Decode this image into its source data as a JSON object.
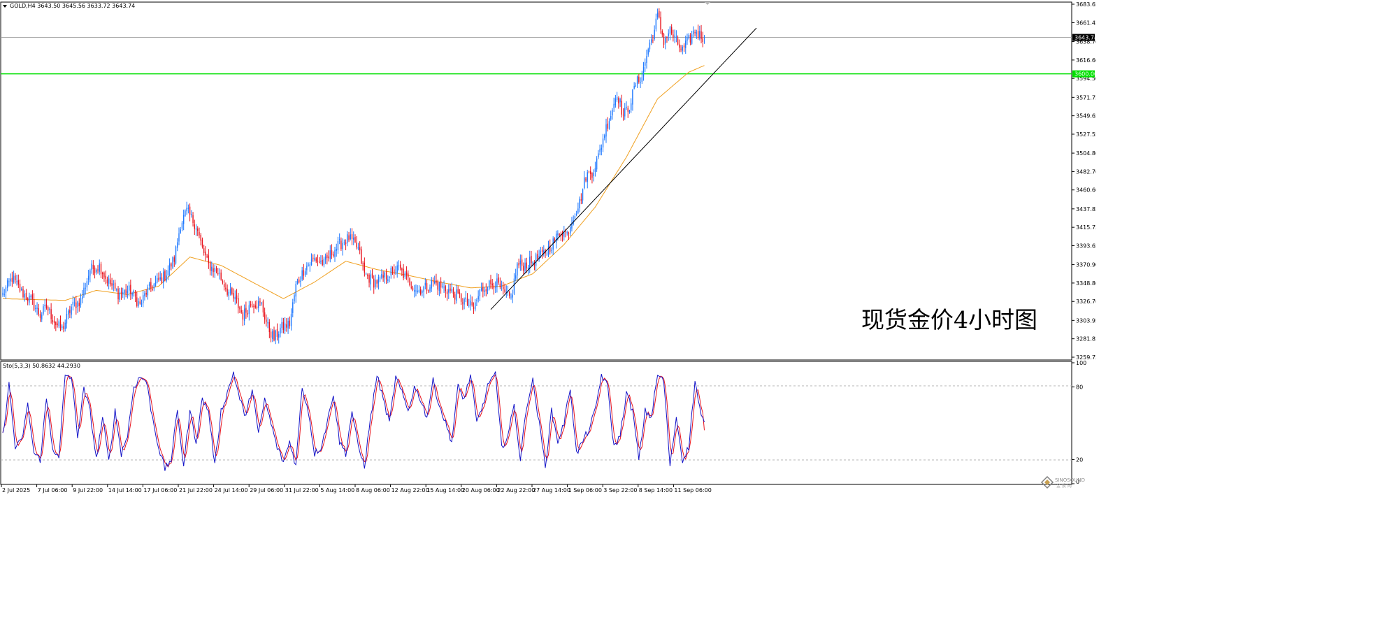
{
  "header": {
    "symbol_line": "GOLD,H4  3643.50 3645.56 3633.72 3643.74",
    "annotation": "现货金价4小时图"
  },
  "colors": {
    "up": "#1E78FF",
    "down": "#E8141E",
    "ma": "#F0A020",
    "support": "#00E000",
    "trend": "#000000",
    "stoch_k": "#1414C8",
    "stoch_d": "#E8141E",
    "bid_line": "#A0A0A0",
    "grid_dash": "#B4B4B4"
  },
  "stoch": {
    "label": "Sto(5,3,3) 50.8632 44.2930",
    "k_last": 50.8632,
    "d_last": 44.293,
    "levels": [
      20,
      80
    ],
    "axis_labels": [
      "100",
      "80",
      "20",
      "0"
    ]
  },
  "chart_data": {
    "type": "candlestick",
    "symbol": "GOLD",
    "timeframe": "H4",
    "last": {
      "open": 3643.5,
      "high": 3645.56,
      "low": 3633.72,
      "close": 3643.74
    },
    "ylim": [
      3259.75,
      3683.65
    ],
    "y_ticks": [
      "3683.65",
      "3661.45",
      "3638.70",
      "3616.60",
      "3594.50",
      "3571.75",
      "3549.65",
      "3527.55",
      "3504.80",
      "3482.70",
      "3460.60",
      "3437.85",
      "3415.75",
      "3393.65",
      "3370.90",
      "3348.80",
      "3326.70",
      "3303.95",
      "3281.85",
      "3259.75"
    ],
    "current_price_label": "3643.74",
    "support_level": 3600.0,
    "support_label": "3600.00",
    "x_tick_labels": [
      "2 Jul 2025",
      "7 Jul 06:00",
      "9 Jul 22:00",
      "14 Jul 14:00",
      "17 Jul 06:00",
      "21 Jul 22:00",
      "24 Jul 14:00",
      "29 Jul 06:00",
      "31 Jul 22:00",
      "5 Aug 14:00",
      "8 Aug 06:00",
      "12 Aug 22:00",
      "15 Aug 14:00",
      "20 Aug 06:00",
      "22 Aug 22:00",
      "27 Aug 14:00",
      "1 Sep 06:00",
      "3 Sep 22:00",
      "8 Sep 14:00",
      "11 Sep 06:00"
    ],
    "trend_line_points": [
      [
        3317,
        0.0
      ],
      [
        3655,
        1.0
      ]
    ],
    "price_anchors": [
      [
        0,
        3335
      ],
      [
        6,
        3355
      ],
      [
        12,
        3338
      ],
      [
        18,
        3328
      ],
      [
        24,
        3310
      ],
      [
        28,
        3320
      ],
      [
        34,
        3300
      ],
      [
        38,
        3293
      ],
      [
        44,
        3320
      ],
      [
        50,
        3328
      ],
      [
        56,
        3365
      ],
      [
        62,
        3370
      ],
      [
        66,
        3355
      ],
      [
        70,
        3345
      ],
      [
        74,
        3336
      ],
      [
        82,
        3340
      ],
      [
        88,
        3322
      ],
      [
        92,
        3338
      ],
      [
        98,
        3348
      ],
      [
        104,
        3358
      ],
      [
        110,
        3378
      ],
      [
        114,
        3420
      ],
      [
        118,
        3435
      ],
      [
        124,
        3418
      ],
      [
        128,
        3390
      ],
      [
        132,
        3370
      ],
      [
        138,
        3362
      ],
      [
        144,
        3340
      ],
      [
        150,
        3325
      ],
      [
        154,
        3310
      ],
      [
        160,
        3326
      ],
      [
        166,
        3322
      ],
      [
        170,
        3296
      ],
      [
        174,
        3282
      ],
      [
        178,
        3294
      ],
      [
        184,
        3300
      ],
      [
        188,
        3345
      ],
      [
        194,
        3368
      ],
      [
        200,
        3378
      ],
      [
        206,
        3372
      ],
      [
        212,
        3388
      ],
      [
        218,
        3398
      ],
      [
        222,
        3403
      ],
      [
        228,
        3390
      ],
      [
        232,
        3360
      ],
      [
        238,
        3350
      ],
      [
        242,
        3352
      ],
      [
        248,
        3360
      ],
      [
        254,
        3366
      ],
      [
        260,
        3352
      ],
      [
        266,
        3340
      ],
      [
        272,
        3344
      ],
      [
        276,
        3350
      ],
      [
        280,
        3345
      ],
      [
        286,
        3340
      ],
      [
        292,
        3333
      ],
      [
        298,
        3324
      ],
      [
        302,
        3318
      ],
      [
        306,
        3338
      ],
      [
        310,
        3345
      ],
      [
        316,
        3350
      ],
      [
        322,
        3335
      ],
      [
        326,
        3330
      ],
      [
        330,
        3370
      ],
      [
        334,
        3370
      ],
      [
        340,
        3375
      ],
      [
        346,
        3382
      ],
      [
        350,
        3390
      ],
      [
        354,
        3400
      ],
      [
        358,
        3412
      ],
      [
        362,
        3408
      ],
      [
        366,
        3430
      ],
      [
        370,
        3445
      ],
      [
        374,
        3478
      ],
      [
        378,
        3482
      ],
      [
        382,
        3500
      ],
      [
        386,
        3530
      ],
      [
        390,
        3552
      ],
      [
        394,
        3578
      ],
      [
        398,
        3550
      ],
      [
        402,
        3562
      ],
      [
        406,
        3588
      ],
      [
        410,
        3598
      ],
      [
        414,
        3630
      ],
      [
        418,
        3652
      ],
      [
        420,
        3670
      ],
      [
        424,
        3640
      ],
      [
        428,
        3652
      ],
      [
        432,
        3638
      ],
      [
        436,
        3628
      ],
      [
        440,
        3640
      ],
      [
        444,
        3652
      ],
      [
        448,
        3645
      ],
      [
        450,
        3643.74
      ]
    ],
    "ma_anchors": [
      [
        0,
        3330
      ],
      [
        40,
        3328
      ],
      [
        60,
        3340
      ],
      [
        80,
        3335
      ],
      [
        100,
        3345
      ],
      [
        120,
        3380
      ],
      [
        140,
        3370
      ],
      [
        160,
        3350
      ],
      [
        180,
        3330
      ],
      [
        200,
        3350
      ],
      [
        220,
        3375
      ],
      [
        240,
        3365
      ],
      [
        260,
        3358
      ],
      [
        280,
        3350
      ],
      [
        300,
        3343
      ],
      [
        320,
        3345
      ],
      [
        340,
        3360
      ],
      [
        360,
        3395
      ],
      [
        380,
        3440
      ],
      [
        400,
        3500
      ],
      [
        420,
        3570
      ],
      [
        440,
        3602
      ],
      [
        450,
        3610
      ]
    ],
    "stoch_anchors": [
      [
        0,
        40
      ],
      [
        4,
        82
      ],
      [
        8,
        30
      ],
      [
        12,
        35
      ],
      [
        16,
        65
      ],
      [
        20,
        25
      ],
      [
        24,
        20
      ],
      [
        28,
        70
      ],
      [
        32,
        30
      ],
      [
        36,
        20
      ],
      [
        40,
        90
      ],
      [
        44,
        88
      ],
      [
        48,
        40
      ],
      [
        52,
        78
      ],
      [
        56,
        60
      ],
      [
        60,
        20
      ],
      [
        64,
        55
      ],
      [
        68,
        18
      ],
      [
        72,
        60
      ],
      [
        76,
        25
      ],
      [
        80,
        40
      ],
      [
        84,
        80
      ],
      [
        88,
        88
      ],
      [
        92,
        85
      ],
      [
        96,
        55
      ],
      [
        100,
        30
      ],
      [
        104,
        12
      ],
      [
        108,
        20
      ],
      [
        112,
        60
      ],
      [
        116,
        15
      ],
      [
        120,
        60
      ],
      [
        124,
        35
      ],
      [
        128,
        70
      ],
      [
        132,
        60
      ],
      [
        136,
        15
      ],
      [
        140,
        60
      ],
      [
        144,
        75
      ],
      [
        148,
        92
      ],
      [
        152,
        70
      ],
      [
        156,
        55
      ],
      [
        160,
        80
      ],
      [
        164,
        40
      ],
      [
        168,
        70
      ],
      [
        172,
        50
      ],
      [
        176,
        30
      ],
      [
        180,
        18
      ],
      [
        184,
        35
      ],
      [
        188,
        15
      ],
      [
        192,
        80
      ],
      [
        196,
        60
      ],
      [
        200,
        25
      ],
      [
        204,
        30
      ],
      [
        208,
        50
      ],
      [
        212,
        75
      ],
      [
        216,
        35
      ],
      [
        220,
        25
      ],
      [
        224,
        60
      ],
      [
        228,
        30
      ],
      [
        232,
        15
      ],
      [
        236,
        55
      ],
      [
        240,
        90
      ],
      [
        244,
        70
      ],
      [
        248,
        50
      ],
      [
        252,
        88
      ],
      [
        256,
        75
      ],
      [
        260,
        60
      ],
      [
        264,
        80
      ],
      [
        268,
        70
      ],
      [
        272,
        55
      ],
      [
        276,
        85
      ],
      [
        280,
        65
      ],
      [
        284,
        50
      ],
      [
        288,
        35
      ],
      [
        292,
        80
      ],
      [
        296,
        70
      ],
      [
        300,
        90
      ],
      [
        304,
        50
      ],
      [
        308,
        65
      ],
      [
        312,
        85
      ],
      [
        316,
        90
      ],
      [
        320,
        30
      ],
      [
        324,
        40
      ],
      [
        328,
        65
      ],
      [
        332,
        20
      ],
      [
        336,
        65
      ],
      [
        340,
        85
      ],
      [
        344,
        50
      ],
      [
        348,
        15
      ],
      [
        352,
        60
      ],
      [
        356,
        35
      ],
      [
        360,
        50
      ],
      [
        364,
        80
      ],
      [
        368,
        25
      ],
      [
        372,
        35
      ],
      [
        376,
        45
      ],
      [
        380,
        60
      ],
      [
        384,
        90
      ],
      [
        388,
        80
      ],
      [
        392,
        30
      ],
      [
        396,
        40
      ],
      [
        400,
        75
      ],
      [
        404,
        60
      ],
      [
        408,
        20
      ],
      [
        412,
        60
      ],
      [
        416,
        55
      ],
      [
        420,
        90
      ],
      [
        424,
        85
      ],
      [
        428,
        15
      ],
      [
        432,
        55
      ],
      [
        436,
        20
      ],
      [
        440,
        30
      ],
      [
        444,
        85
      ],
      [
        448,
        55
      ],
      [
        450,
        50.86
      ]
    ]
  }
}
